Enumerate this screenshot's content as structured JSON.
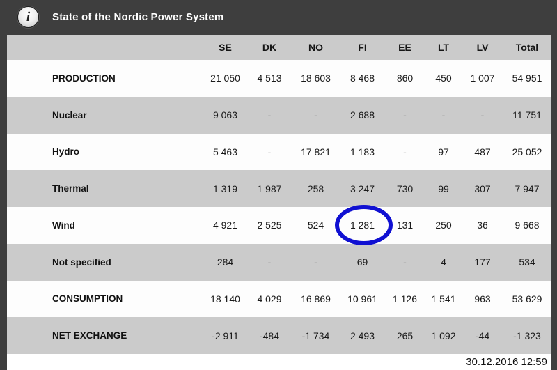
{
  "header": {
    "title": "State of the Nordic Power System",
    "info_icon_glyph": "i"
  },
  "table": {
    "columns": [
      "SE",
      "DK",
      "NO",
      "FI",
      "EE",
      "LT",
      "LV",
      "Total"
    ],
    "rows": [
      {
        "label": "PRODUCTION",
        "values": [
          "21 050",
          "4 513",
          "18 603",
          "8 468",
          "860",
          "450",
          "1 007",
          "54 951"
        ]
      },
      {
        "label": "Nuclear",
        "values": [
          "9 063",
          "-",
          "-",
          "2 688",
          "-",
          "-",
          "-",
          "11 751"
        ]
      },
      {
        "label": "Hydro",
        "values": [
          "5 463",
          "-",
          "17 821",
          "1 183",
          "-",
          "97",
          "487",
          "25 052"
        ]
      },
      {
        "label": "Thermal",
        "values": [
          "1 319",
          "1 987",
          "258",
          "3 247",
          "730",
          "99",
          "307",
          "7 947"
        ]
      },
      {
        "label": "Wind",
        "values": [
          "4 921",
          "2 525",
          "524",
          "1 281",
          "131",
          "250",
          "36",
          "9 668"
        ]
      },
      {
        "label": "Not specified",
        "values": [
          "284",
          "-",
          "-",
          "69",
          "-",
          "4",
          "177",
          "534"
        ]
      },
      {
        "label": "CONSUMPTION",
        "values": [
          "18 140",
          "4 029",
          "16 869",
          "10 961",
          "1 126",
          "1 541",
          "963",
          "53 629"
        ]
      },
      {
        "label": "NET EXCHANGE",
        "values": [
          "-2 911",
          "-484",
          "-1 734",
          "2 493",
          "265",
          "1 092",
          "-44",
          "-1 323"
        ]
      }
    ]
  },
  "annotation": {
    "type": "ellipse-highlight",
    "highlighted_value": "1 281",
    "highlighted_row": "Wind",
    "highlighted_column": "FI",
    "color": "#1010d2"
  },
  "footer": {
    "timestamp": "30.12.2016 12:59"
  },
  "colors": {
    "frame": "#3e3e3e",
    "row_gray": "#cbcbcb",
    "row_white": "#fdfdfd",
    "text": "#1a1a1a",
    "title_text": "#ffffff",
    "highlight_blue": "#1010d2"
  }
}
